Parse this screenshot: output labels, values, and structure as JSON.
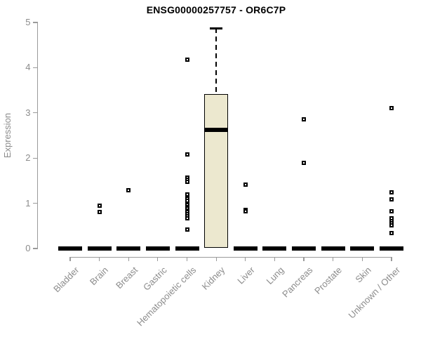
{
  "title": "ENSG00000257757 - OR6C7P",
  "chart_data": {
    "type": "boxplot",
    "title": "ENSG00000257757 - OR6C7P",
    "xlabel": "",
    "ylabel": "Expression",
    "ylim": [
      0,
      5
    ],
    "yticks": [
      0,
      1,
      2,
      3,
      4,
      5
    ],
    "grid": false,
    "legend": "none",
    "colors": {
      "box_fill": "#ece8cf",
      "box_stroke": "#000000",
      "axis_text": "#8c8c8c",
      "axis_line": "#9a9a9a",
      "title_text": "#000000"
    },
    "categories": [
      "Bladder",
      "Brain",
      "Breast",
      "Gastric",
      "Hematopoietic cells",
      "Kidney",
      "Liver",
      "Lung",
      "Pancreas",
      "Prostate",
      "Skin",
      "Unknown / Other"
    ],
    "boxes": [
      {
        "category": "Bladder",
        "min": 0,
        "q1": 0,
        "median": 0,
        "q3": 0,
        "max": 0,
        "outliers": []
      },
      {
        "category": "Brain",
        "min": 0,
        "q1": 0,
        "median": 0,
        "q3": 0,
        "max": 0,
        "outliers": [
          0.95,
          0.8
        ]
      },
      {
        "category": "Breast",
        "min": 0,
        "q1": 0,
        "median": 0,
        "q3": 0,
        "max": 0,
        "outliers": [
          1.29
        ]
      },
      {
        "category": "Gastric",
        "min": 0,
        "q1": 0,
        "median": 0,
        "q3": 0,
        "max": 0,
        "outliers": []
      },
      {
        "category": "Hematopoietic cells",
        "min": 0,
        "q1": 0,
        "median": 0,
        "q3": 0,
        "max": 0,
        "outliers": [
          4.18,
          2.08,
          1.57,
          1.52,
          1.47,
          1.19,
          1.1,
          1.05,
          1.0,
          0.96,
          0.92,
          0.88,
          0.84,
          0.8,
          0.76,
          0.72,
          0.67,
          0.42
        ]
      },
      {
        "category": "Kidney",
        "min": 0,
        "q1": 0.02,
        "median": 2.63,
        "q3": 3.42,
        "max": 4.87,
        "outliers": []
      },
      {
        "category": "Liver",
        "min": 0,
        "q1": 0,
        "median": 0,
        "q3": 0,
        "max": 0,
        "outliers": [
          1.41,
          0.86,
          0.82
        ]
      },
      {
        "category": "Lung",
        "min": 0,
        "q1": 0,
        "median": 0,
        "q3": 0,
        "max": 0,
        "outliers": []
      },
      {
        "category": "Pancreas",
        "min": 0,
        "q1": 0,
        "median": 0,
        "q3": 0,
        "max": 0,
        "outliers": [
          2.85,
          1.89
        ]
      },
      {
        "category": "Prostate",
        "min": 0,
        "q1": 0,
        "median": 0,
        "q3": 0,
        "max": 0,
        "outliers": []
      },
      {
        "category": "Skin",
        "min": 0,
        "q1": 0,
        "median": 0,
        "q3": 0,
        "max": 0,
        "outliers": []
      },
      {
        "category": "Unknown / Other",
        "min": 0,
        "q1": 0,
        "median": 0,
        "q3": 0,
        "max": 0,
        "outliers": [
          3.1,
          1.25,
          1.08,
          0.82,
          0.66,
          0.61,
          0.56,
          0.51,
          0.34
        ]
      }
    ]
  }
}
